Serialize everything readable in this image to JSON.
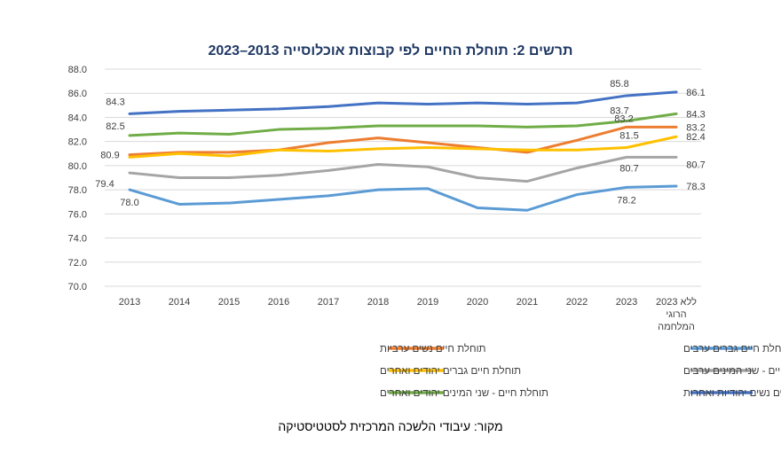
{
  "chart_data": {
    "type": "line",
    "title": "תרשים 2: תוחלת החיים לפי קבוצות אוכלוסייה 2013–2023",
    "categories": [
      "2013",
      "2014",
      "2015",
      "2016",
      "2017",
      "2018",
      "2019",
      "2020",
      "2021",
      "2022",
      "2023",
      "2023 ללא\nהרוגי\nהמלחמה"
    ],
    "ylim": [
      70.0,
      88.0
    ],
    "yticks": [
      "70.0",
      "72.0",
      "74.0",
      "76.0",
      "78.0",
      "80.0",
      "82.0",
      "84.0",
      "86.0",
      "88.0"
    ],
    "grid": true,
    "legend_position": "bottom",
    "series": [
      {
        "name": "תוחלת חיים גברים ערבים",
        "color": "#5b9bd5",
        "values": [
          78.0,
          76.8,
          76.9,
          77.2,
          77.5,
          78.0,
          78.1,
          76.5,
          76.3,
          77.6,
          78.2,
          78.3
        ],
        "labels": [
          {
            "i": 0,
            "text": "78.0"
          },
          {
            "i": 10,
            "text": "78.2"
          },
          {
            "i": 11,
            "text": "78.3"
          }
        ]
      },
      {
        "name": "תוחלת חיים נשים ערביות",
        "color": "#ed7d31",
        "values": [
          80.9,
          81.1,
          81.1,
          81.3,
          81.9,
          82.3,
          81.9,
          81.5,
          81.1,
          82.1,
          83.2,
          83.2
        ],
        "labels": [
          {
            "i": 0,
            "text": "80.9"
          },
          {
            "i": 10,
            "text": "83.2"
          },
          {
            "i": 11,
            "text": "83.2"
          }
        ]
      },
      {
        "name": "תוחלת חיים - שני המינים ערבים",
        "color": "#a5a5a5",
        "values": [
          79.4,
          79.0,
          79.0,
          79.2,
          79.6,
          80.1,
          79.9,
          79.0,
          78.7,
          79.8,
          80.7,
          80.7
        ],
        "labels": [
          {
            "i": 0,
            "text": "79.4"
          },
          {
            "i": 10,
            "text": "80.7"
          },
          {
            "i": 11,
            "text": "80.7"
          }
        ]
      },
      {
        "name": "תוחלת חיים גברים יהודים ואחרים",
        "color": "#ffc000",
        "values": [
          80.7,
          81.0,
          80.8,
          81.3,
          81.2,
          81.4,
          81.5,
          81.4,
          81.3,
          81.3,
          81.5,
          82.4
        ],
        "labels": [
          {
            "i": 10,
            "text": "81.5"
          },
          {
            "i": 11,
            "text": "82.4"
          }
        ]
      },
      {
        "name": "תוחלת חיים נשים יהודיות ואחרות",
        "color": "#4472c4",
        "values": [
          84.3,
          84.5,
          84.6,
          84.7,
          84.9,
          85.2,
          85.1,
          85.2,
          85.1,
          85.2,
          85.8,
          86.1
        ],
        "labels": [
          {
            "i": 0,
            "text": "84.3"
          },
          {
            "i": 10,
            "text": "85.8"
          },
          {
            "i": 11,
            "text": "86.1"
          }
        ]
      },
      {
        "name": "תוחלת חיים - שני המינים יהודים ואחרים",
        "color": "#70ad47",
        "values": [
          82.5,
          82.7,
          82.6,
          83.0,
          83.1,
          83.3,
          83.3,
          83.3,
          83.2,
          83.3,
          83.7,
          84.3
        ],
        "labels": [
          {
            "i": 0,
            "text": "82.5"
          },
          {
            "i": 10,
            "text": "83.7"
          },
          {
            "i": 11,
            "text": "84.3"
          }
        ]
      }
    ]
  },
  "source_text": "מקור: עיבודי הלשכה המרכזית לסטטיסטיקה"
}
